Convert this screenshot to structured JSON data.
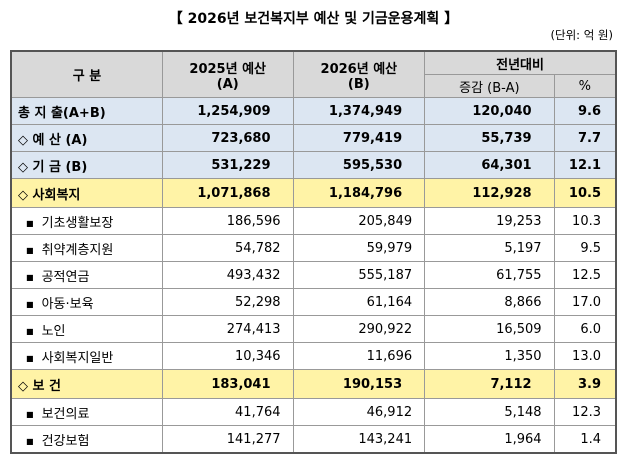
{
  "title": "【 2026년 보건복지부 예산 및 기금운용계획 】",
  "unit": "(단위: 억 원)",
  "table": {
    "header": {
      "category": "구 분",
      "col_a": "2025년 예산",
      "col_a_sub": "(A)",
      "col_b": "2026년 예산",
      "col_b_sub": "(B)",
      "group": "전년대비",
      "diff": "증감 (B-A)",
      "pct": "%"
    },
    "rows": [
      [
        "총 지 출(A+B)",
        "1,254,909",
        "1,374,949",
        "120,040",
        "9.6"
      ],
      [
        "◇ 예 산 (A)",
        "723,680",
        "779,419",
        "55,739",
        "7.7"
      ],
      [
        "◇ 기 금 (B)",
        "531,229",
        "595,530",
        "64,301",
        "12.1"
      ],
      [
        "◇ 사회복지",
        "1,071,868",
        "1,184,796",
        "112,928",
        "10.5"
      ],
      [
        "기초생활보장",
        "186,596",
        "205,849",
        "19,253",
        "10.3"
      ],
      [
        "취약계층지원",
        "54,782",
        "59,979",
        "5,197",
        "9.5"
      ],
      [
        "공적연금",
        "493,432",
        "555,187",
        "61,755",
        "12.5"
      ],
      [
        "아동·보육",
        "52,298",
        "61,164",
        "8,866",
        "17.0"
      ],
      [
        "노인",
        "274,413",
        "290,922",
        "16,509",
        "6.0"
      ],
      [
        "사회복지일반",
        "10,346",
        "11,696",
        "1,350",
        "13.0"
      ],
      [
        "◇ 보 건",
        "183,041",
        "190,153",
        "7,112",
        "3.9"
      ],
      [
        "보건의료",
        "41,764",
        "46,912",
        "5,148",
        "12.3"
      ],
      [
        "건강보험",
        "141,277",
        "143,241",
        "1,964",
        "1.4"
      ]
    ]
  }
}
